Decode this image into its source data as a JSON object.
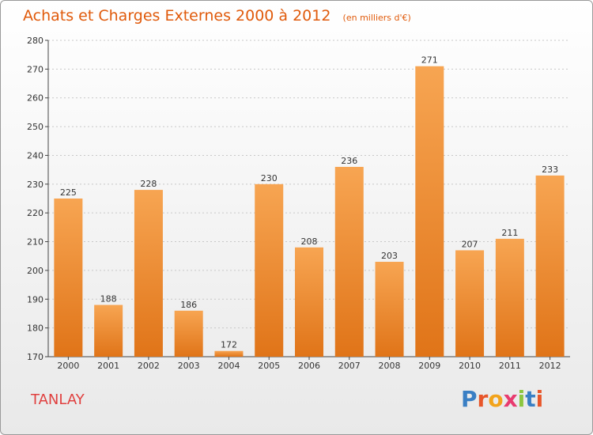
{
  "header": {
    "title": "Achats et Charges Externes 2000 à 2012",
    "subtitle": "(en milliers d'€)"
  },
  "footer": {
    "commune": "TANLAY",
    "brand": "Proxiti"
  },
  "colors": {
    "bar_top": "#f7a552",
    "bar_bottom": "#e07418",
    "title": "#e05a0b",
    "commune": "#e0403f"
  },
  "chart_data": {
    "type": "bar",
    "title": "Achats et Charges Externes 2000 à 2012",
    "subtitle": "(en milliers d'€)",
    "categories": [
      "2000",
      "2001",
      "2002",
      "2003",
      "2004",
      "2005",
      "2006",
      "2007",
      "2008",
      "2009",
      "2010",
      "2011",
      "2012"
    ],
    "values": [
      225,
      188,
      228,
      186,
      172,
      230,
      208,
      236,
      203,
      271,
      207,
      211,
      233
    ],
    "ylim": [
      170,
      280
    ],
    "yticks": [
      170,
      180,
      190,
      200,
      210,
      220,
      230,
      240,
      250,
      260,
      270,
      280
    ],
    "grid": true,
    "xlabel": "",
    "ylabel": ""
  }
}
